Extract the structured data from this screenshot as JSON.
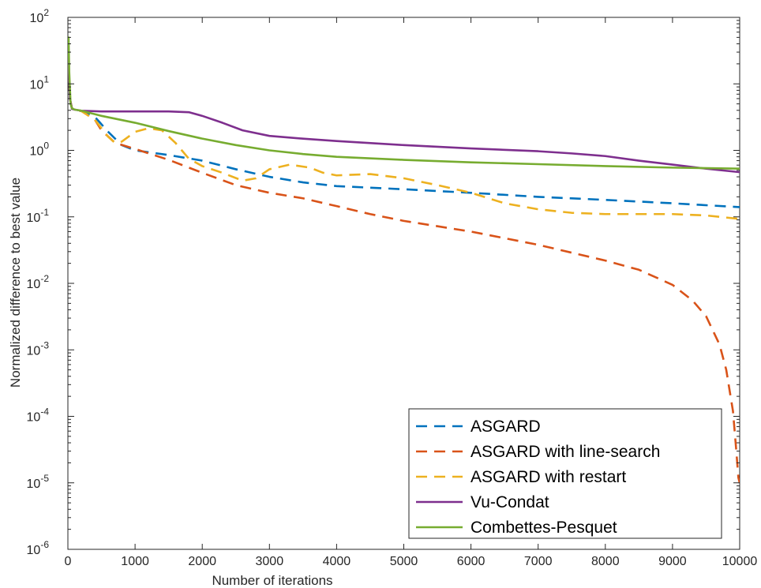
{
  "chart_data": {
    "type": "line",
    "xlabel": "Number of iterations",
    "ylabel": "Normalized difference to best value",
    "xlim": [
      0,
      10000
    ],
    "ylim": [
      1e-06,
      100
    ],
    "yscale": "log",
    "grid": false,
    "legend_position": "bottom-right",
    "x_ticks": [
      0,
      1000,
      2000,
      3000,
      4000,
      5000,
      6000,
      7000,
      8000,
      9000,
      10000
    ],
    "y_ticks": [
      {
        "value": 1e-06,
        "base": "10",
        "exp": "-6"
      },
      {
        "value": 1e-05,
        "base": "10",
        "exp": "-5"
      },
      {
        "value": 0.0001,
        "base": "10",
        "exp": "-4"
      },
      {
        "value": 0.001,
        "base": "10",
        "exp": "-3"
      },
      {
        "value": 0.01,
        "base": "10",
        "exp": "-2"
      },
      {
        "value": 0.1,
        "base": "10",
        "exp": "-1"
      },
      {
        "value": 1,
        "base": "10",
        "exp": "0"
      },
      {
        "value": 10,
        "base": "10",
        "exp": "1"
      },
      {
        "value": 100,
        "base": "10",
        "exp": "2"
      }
    ],
    "series": [
      {
        "name": "ASGARD",
        "color": "#0072BD",
        "dash": "dashed",
        "x": [
          0,
          10,
          30,
          60,
          100,
          200,
          400,
          600,
          800,
          1000,
          1500,
          2000,
          2500,
          3000,
          3500,
          4000,
          5000,
          6000,
          7000,
          8000,
          9000,
          10000
        ],
        "y": [
          40,
          20,
          6,
          4.3,
          4.1,
          3.9,
          3.2,
          1.9,
          1.2,
          1.0,
          0.85,
          0.7,
          0.52,
          0.4,
          0.33,
          0.29,
          0.26,
          0.23,
          0.2,
          0.18,
          0.16,
          0.14
        ]
      },
      {
        "name": "ASGARD with line-search",
        "color": "#D95319",
        "dash": "dashed",
        "x": [
          0,
          10,
          30,
          60,
          100,
          200,
          400,
          500,
          700,
          1000,
          1500,
          2000,
          2500,
          3000,
          3500,
          4000,
          4500,
          5000,
          6000,
          7000,
          8000,
          8500,
          9000,
          9300,
          9500,
          9700,
          9800,
          9900,
          9950,
          9980,
          10000
        ],
        "y": [
          40,
          20,
          6,
          4.3,
          4.1,
          3.9,
          2.9,
          2.0,
          1.3,
          1.05,
          0.72,
          0.46,
          0.3,
          0.23,
          0.19,
          0.145,
          0.11,
          0.087,
          0.06,
          0.038,
          0.022,
          0.016,
          0.0095,
          0.0055,
          0.0032,
          0.0012,
          0.0005,
          0.00012,
          3e-05,
          1.2e-05,
          1e-05
        ]
      },
      {
        "name": "ASGARD with restart",
        "color": "#EDB120",
        "dash": "dashed",
        "x": [
          0,
          10,
          30,
          60,
          100,
          200,
          400,
          600,
          700,
          800,
          900,
          1000,
          1200,
          1400,
          1600,
          1800,
          2000,
          2300,
          2600,
          2800,
          3000,
          3300,
          3600,
          3800,
          4000,
          4500,
          5000,
          5500,
          6000,
          6500,
          7000,
          7500,
          8000,
          8500,
          9000,
          9500,
          10000
        ],
        "y": [
          40,
          20,
          6,
          4.3,
          4.1,
          3.9,
          2.9,
          1.6,
          1.3,
          1.35,
          1.6,
          1.9,
          2.15,
          2.0,
          1.3,
          0.75,
          0.58,
          0.46,
          0.35,
          0.38,
          0.52,
          0.61,
          0.55,
          0.46,
          0.42,
          0.44,
          0.38,
          0.3,
          0.23,
          0.16,
          0.13,
          0.115,
          0.11,
          0.11,
          0.11,
          0.105,
          0.093
        ]
      },
      {
        "name": "Vu-Condat",
        "color": "#7E2F8E",
        "dash": "solid",
        "x": [
          0,
          10,
          30,
          60,
          100,
          200,
          500,
          1000,
          1500,
          1800,
          2000,
          2300,
          2600,
          3000,
          3500,
          4000,
          5000,
          6000,
          7000,
          7500,
          8000,
          8500,
          9000,
          9500,
          10000
        ],
        "y": [
          40,
          20,
          6,
          4.2,
          4.1,
          3.95,
          3.85,
          3.85,
          3.85,
          3.75,
          3.3,
          2.6,
          2.0,
          1.65,
          1.5,
          1.38,
          1.2,
          1.07,
          0.97,
          0.9,
          0.82,
          0.7,
          0.61,
          0.53,
          0.47
        ]
      },
      {
        "name": "Combettes-Pesquet",
        "color": "#77AC30",
        "dash": "solid",
        "x": [
          0,
          10,
          20,
          40,
          60,
          100,
          200,
          500,
          1000,
          1500,
          2000,
          2500,
          3000,
          3500,
          4000,
          5000,
          6000,
          7000,
          8000,
          9000,
          10000
        ],
        "y": [
          40,
          50,
          15,
          5,
          4.3,
          4.1,
          3.95,
          3.3,
          2.6,
          1.95,
          1.5,
          1.2,
          1.0,
          0.88,
          0.8,
          0.72,
          0.66,
          0.62,
          0.58,
          0.55,
          0.53
        ]
      }
    ]
  }
}
